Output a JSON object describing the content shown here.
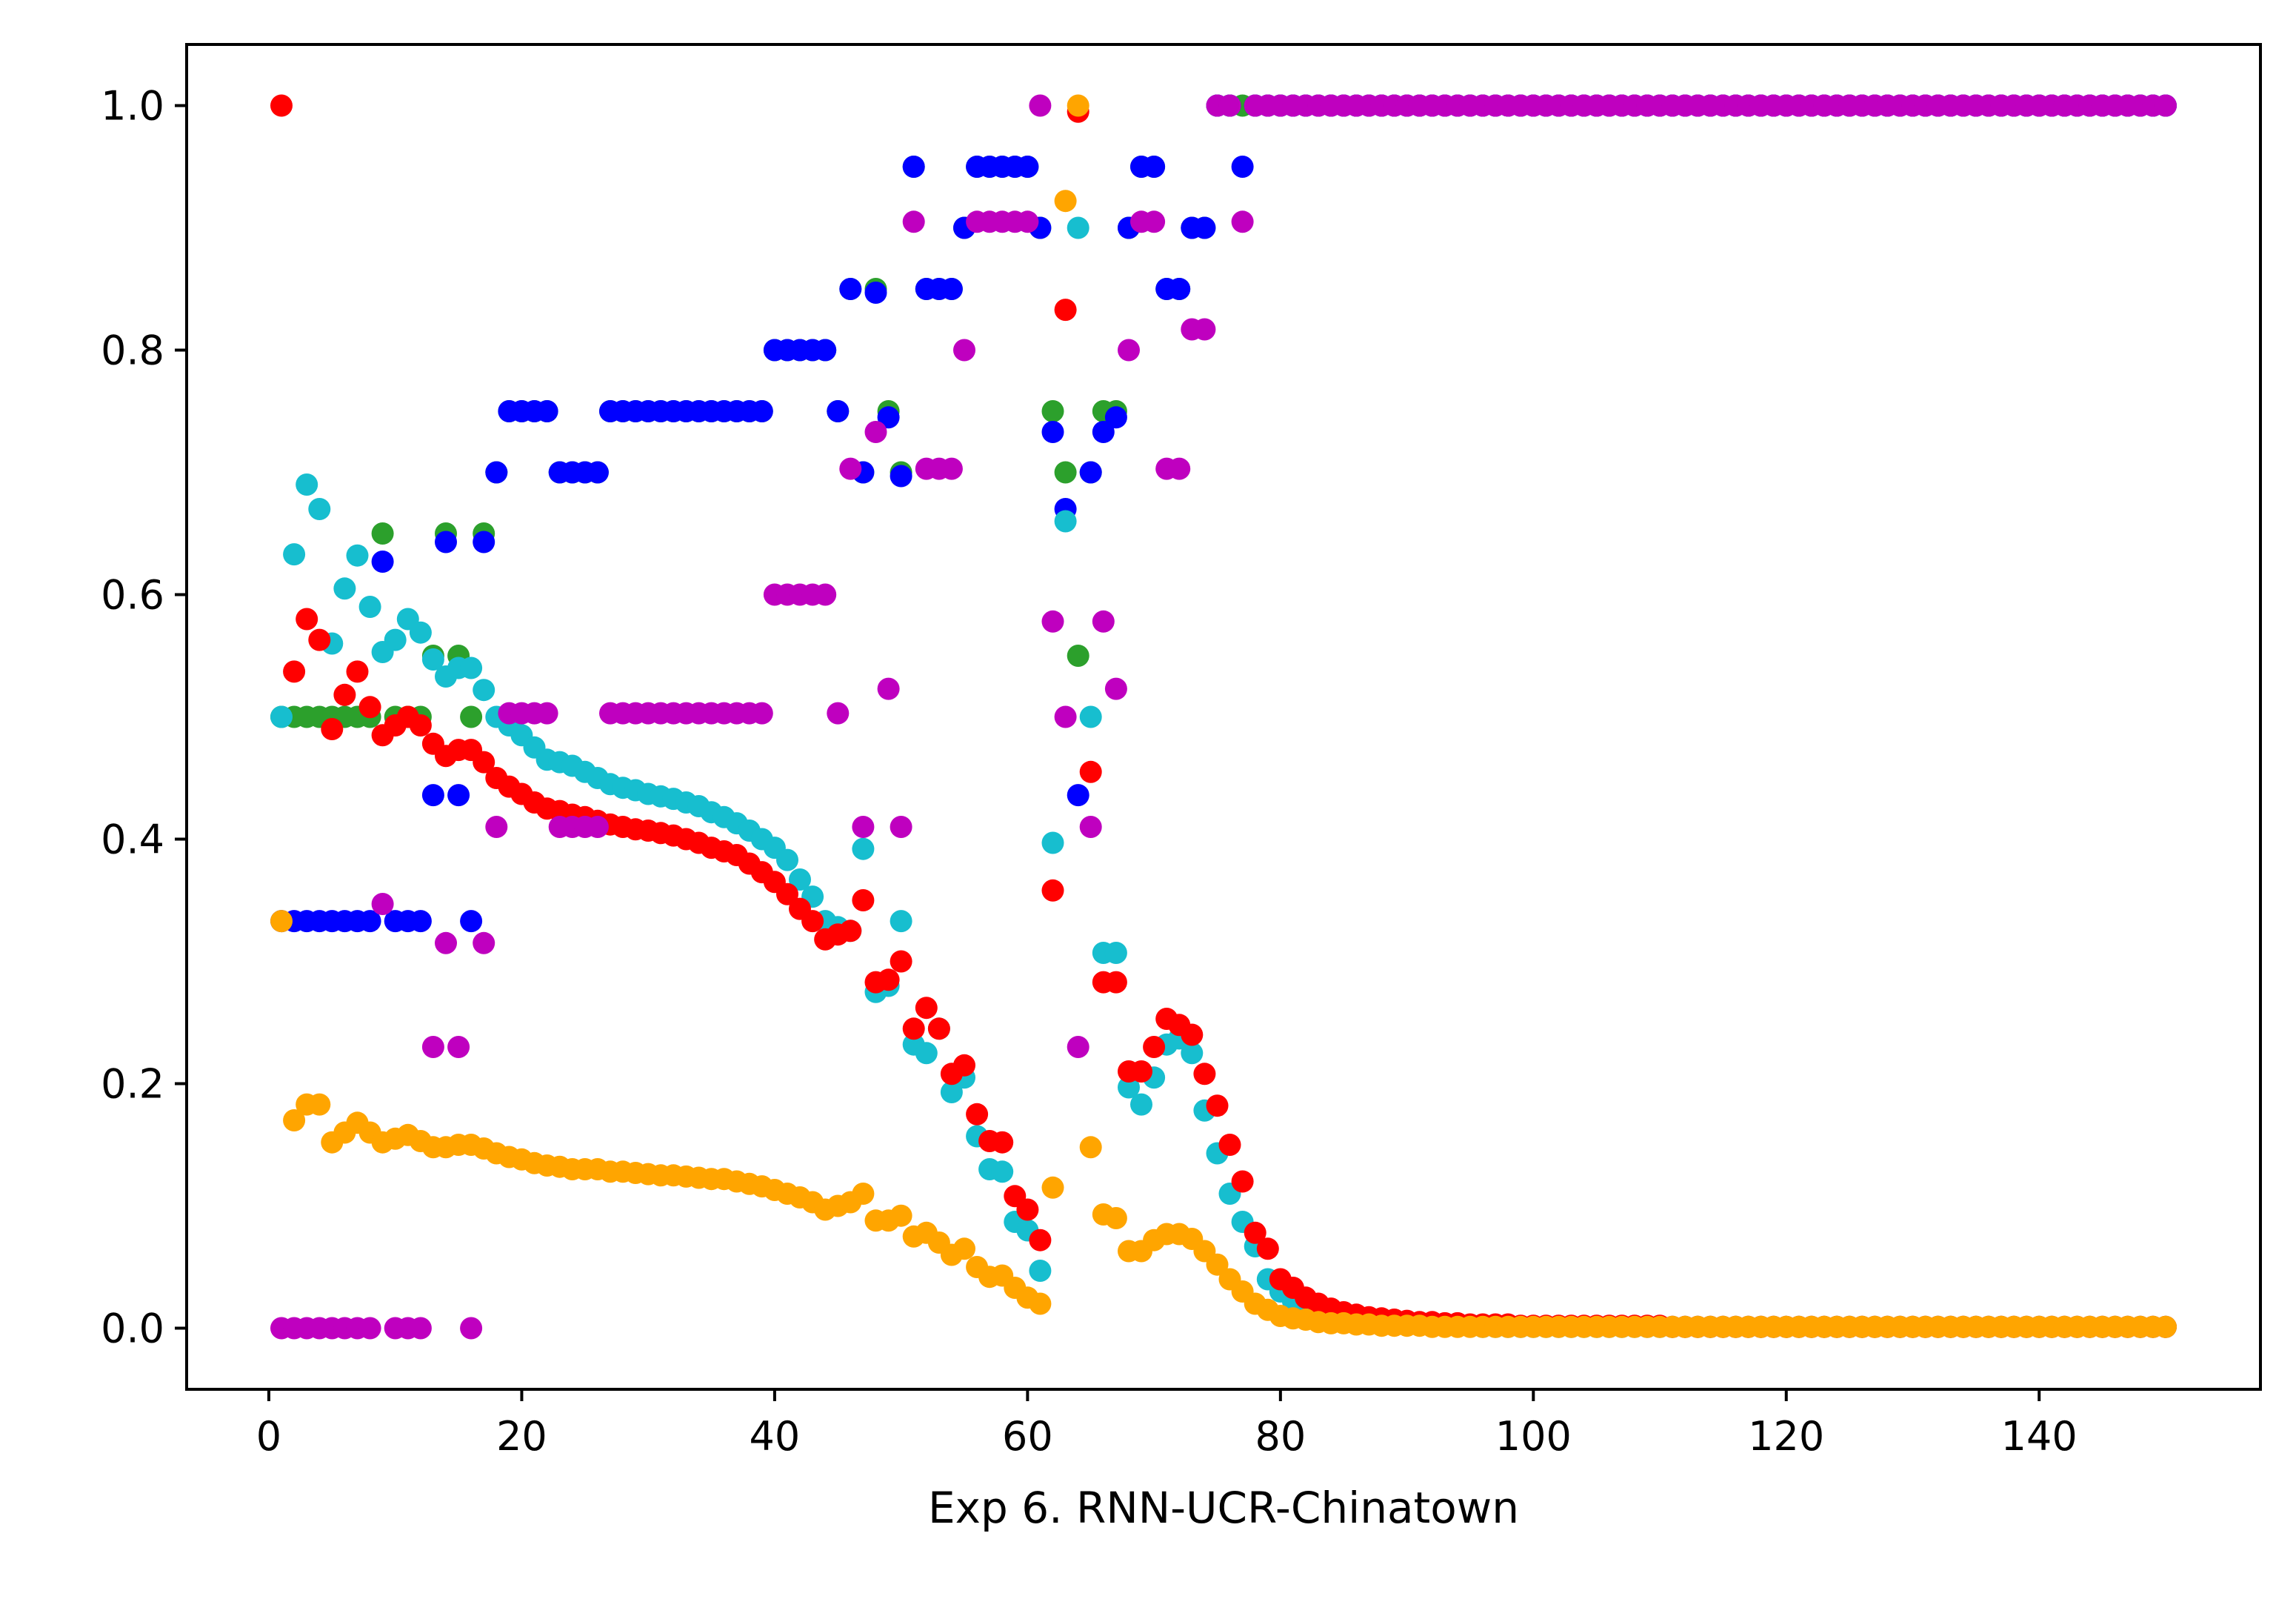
{
  "chart_data": {
    "type": "scatter",
    "title": "",
    "xlabel": "Exp 6. RNN-UCR-Chinatown",
    "ylabel": "",
    "xlim": [
      -6.5,
      157.5
    ],
    "ylim": [
      -0.05,
      1.05
    ],
    "x_ticks": [
      0,
      20,
      40,
      60,
      80,
      100,
      120,
      140
    ],
    "y_ticks": [
      0.0,
      0.2,
      0.4,
      0.6,
      0.8,
      1.0
    ],
    "x_tick_labels": [
      "0",
      "20",
      "40",
      "60",
      "80",
      "100",
      "120",
      "140"
    ],
    "y_tick_labels": [
      "0.0",
      "0.2",
      "0.4",
      "0.6",
      "0.8",
      "1.0"
    ],
    "grid": false,
    "legend": "none",
    "x": [
      1,
      2,
      3,
      4,
      5,
      6,
      7,
      8,
      9,
      10,
      11,
      12,
      13,
      14,
      15,
      16,
      17,
      18,
      19,
      20,
      21,
      22,
      23,
      24,
      25,
      26,
      27,
      28,
      29,
      30,
      31,
      32,
      33,
      34,
      35,
      36,
      37,
      38,
      39,
      40,
      41,
      42,
      43,
      44,
      45,
      46,
      47,
      48,
      49,
      50,
      51,
      52,
      53,
      54,
      55,
      56,
      57,
      58,
      59,
      60,
      61,
      62,
      63,
      64,
      65,
      66,
      67,
      68,
      69,
      70,
      71,
      72,
      73,
      74,
      75,
      76,
      77,
      78,
      79,
      80,
      81,
      82,
      83,
      84,
      85,
      86,
      87,
      88,
      89,
      90,
      91,
      92,
      93,
      94,
      95,
      96,
      97,
      98,
      99,
      100,
      101,
      102,
      103,
      104,
      105,
      106,
      107,
      108,
      109,
      110,
      111,
      112,
      113,
      114,
      115,
      116,
      117,
      118,
      119,
      120,
      121,
      122,
      123,
      124,
      125,
      126,
      127,
      128,
      129,
      130,
      131,
      132,
      133,
      134,
      135,
      136,
      137,
      138,
      139,
      140,
      141,
      142,
      143,
      144,
      145,
      146,
      147,
      148,
      149,
      150
    ],
    "series": [
      {
        "color": "#2ca02c",
        "values": [
          0.5,
          0.5,
          0.5,
          0.5,
          0.5,
          0.5,
          0.5,
          0.5,
          0.65,
          0.5,
          0.5,
          0.5,
          0.55,
          0.65,
          0.55,
          0.5,
          0.65,
          0.7,
          0.75,
          0.75,
          0.75,
          0.75,
          0.7,
          0.7,
          0.7,
          0.7,
          0.75,
          0.75,
          0.75,
          0.75,
          0.75,
          0.75,
          0.75,
          0.75,
          0.75,
          0.75,
          0.75,
          0.75,
          0.75,
          0.8,
          0.8,
          0.8,
          0.8,
          0.8,
          0.75,
          0.85,
          0.7,
          0.85,
          0.75,
          0.7,
          0.95,
          0.85,
          0.85,
          0.85,
          0.9,
          0.95,
          0.95,
          0.95,
          0.95,
          0.95,
          0.9,
          0.75,
          0.7,
          0.55,
          0.7,
          0.75,
          0.75,
          0.9,
          0.95,
          0.95,
          0.85,
          0.85,
          0.9,
          0.9,
          1.0,
          1.0,
          1.0,
          1.0,
          1.0,
          1.0,
          1.0,
          1.0,
          1.0,
          1.0,
          1.0,
          1.0,
          1.0,
          1.0,
          1.0,
          1.0,
          1.0,
          1.0,
          1.0,
          1.0,
          1.0,
          1.0,
          1.0,
          1.0,
          1.0,
          1.0,
          1.0,
          1.0,
          1.0,
          1.0,
          1.0,
          1.0,
          1.0,
          1.0,
          1.0,
          1.0,
          1.0,
          1.0,
          1.0,
          1.0,
          1.0,
          1.0,
          1.0,
          1.0,
          1.0,
          1.0,
          1.0,
          1.0,
          1.0,
          1.0,
          1.0,
          1.0,
          1.0,
          1.0,
          1.0,
          1.0,
          1.0,
          1.0,
          1.0,
          1.0,
          1.0,
          1.0,
          1.0,
          1.0,
          1.0,
          1.0,
          1.0,
          1.0,
          1.0,
          1.0,
          1.0,
          1.0,
          1.0,
          1.0,
          1.0,
          1.0
        ]
      },
      {
        "color": "#0000ff",
        "values": [
          0.333,
          0.333,
          0.333,
          0.333,
          0.333,
          0.333,
          0.333,
          0.333,
          0.627,
          0.333,
          0.333,
          0.333,
          0.436,
          0.643,
          0.436,
          0.333,
          0.643,
          0.7,
          0.75,
          0.75,
          0.75,
          0.75,
          0.7,
          0.7,
          0.7,
          0.7,
          0.75,
          0.75,
          0.75,
          0.75,
          0.75,
          0.75,
          0.75,
          0.75,
          0.75,
          0.75,
          0.75,
          0.75,
          0.75,
          0.8,
          0.8,
          0.8,
          0.8,
          0.8,
          0.75,
          0.85,
          0.7,
          0.847,
          0.745,
          0.697,
          0.95,
          0.85,
          0.85,
          0.85,
          0.9,
          0.95,
          0.95,
          0.95,
          0.95,
          0.95,
          0.9,
          0.733,
          0.67,
          0.436,
          0.7,
          0.733,
          0.745,
          0.9,
          0.95,
          0.95,
          0.85,
          0.85,
          0.9,
          0.9,
          1.0,
          1.0,
          0.95,
          1.0,
          1.0,
          1.0,
          1.0,
          1.0,
          1.0,
          1.0,
          1.0,
          1.0,
          1.0,
          1.0,
          1.0,
          1.0,
          1.0,
          1.0,
          1.0,
          1.0,
          1.0,
          1.0,
          1.0,
          1.0,
          1.0,
          1.0,
          1.0,
          1.0,
          1.0,
          1.0,
          1.0,
          1.0,
          1.0,
          1.0,
          1.0,
          1.0,
          1.0,
          1.0,
          1.0,
          1.0,
          1.0,
          1.0,
          1.0,
          1.0,
          1.0,
          1.0,
          1.0,
          1.0,
          1.0,
          1.0,
          1.0,
          1.0,
          1.0,
          1.0,
          1.0,
          1.0,
          1.0,
          1.0,
          1.0,
          1.0,
          1.0,
          1.0,
          1.0,
          1.0,
          1.0,
          1.0,
          1.0,
          1.0,
          1.0,
          1.0,
          1.0,
          1.0,
          1.0,
          1.0,
          1.0,
          1.0
        ]
      },
      {
        "color": "#17becf",
        "values": [
          0.5,
          0.633,
          0.69,
          0.67,
          0.56,
          0.605,
          0.632,
          0.59,
          0.553,
          0.563,
          0.58,
          0.569,
          0.547,
          0.533,
          0.54,
          0.54,
          0.522,
          0.5,
          0.493,
          0.485,
          0.475,
          0.465,
          0.463,
          0.46,
          0.455,
          0.45,
          0.445,
          0.442,
          0.44,
          0.437,
          0.435,
          0.433,
          0.43,
          0.427,
          0.422,
          0.418,
          0.413,
          0.407,
          0.4,
          0.393,
          0.383,
          0.367,
          0.353,
          0.333,
          0.328,
          0.325,
          0.392,
          0.275,
          0.28,
          0.333,
          0.232,
          0.225,
          0.245,
          0.193,
          0.205,
          0.157,
          0.13,
          0.128,
          0.087,
          0.08,
          0.047,
          0.397,
          0.66,
          0.9,
          0.5,
          0.307,
          0.307,
          0.197,
          0.183,
          0.205,
          0.232,
          0.237,
          0.225,
          0.178,
          0.143,
          0.11,
          0.087,
          0.067,
          0.04,
          0.03,
          0.022,
          0.016,
          0.012,
          0.009,
          0.007,
          0.006,
          0.005,
          0.004,
          0.004,
          0.003,
          0.003,
          0.002,
          0.002,
          0.002,
          0.002,
          0.001,
          0.001,
          0.001,
          0.001,
          0.001,
          0.001,
          0.001,
          0.001,
          0.001,
          0.001,
          0.001,
          0.001,
          0.001,
          0.001,
          0.001,
          0.001,
          0.001,
          0.001,
          0.001,
          0.001,
          0.001,
          0.001,
          0.001,
          0.001,
          0.001,
          0.001,
          0.001,
          0.001,
          0.001,
          0.001,
          0.001,
          0.001,
          0.001,
          0.001,
          0.001,
          0.001,
          0.001,
          0.001,
          0.001,
          0.001,
          0.001,
          0.001,
          0.001,
          0.001,
          0.001,
          0.001,
          0.001,
          0.001,
          0.001,
          0.001,
          0.001,
          0.001,
          0.001,
          0.001,
          0.001
        ]
      },
      {
        "color": "#ff0000",
        "values": [
          1.0,
          0.537,
          0.58,
          0.563,
          0.49,
          0.518,
          0.537,
          0.508,
          0.485,
          0.493,
          0.5,
          0.493,
          0.478,
          0.468,
          0.473,
          0.473,
          0.463,
          0.45,
          0.443,
          0.437,
          0.43,
          0.425,
          0.423,
          0.42,
          0.418,
          0.415,
          0.412,
          0.41,
          0.408,
          0.407,
          0.405,
          0.403,
          0.4,
          0.397,
          0.393,
          0.39,
          0.387,
          0.38,
          0.373,
          0.365,
          0.355,
          0.343,
          0.333,
          0.318,
          0.322,
          0.325,
          0.35,
          0.283,
          0.285,
          0.3,
          0.245,
          0.262,
          0.245,
          0.208,
          0.215,
          0.175,
          0.153,
          0.152,
          0.108,
          0.097,
          0.072,
          0.358,
          0.833,
          0.995,
          0.455,
          0.283,
          0.283,
          0.21,
          0.21,
          0.23,
          0.253,
          0.248,
          0.24,
          0.208,
          0.182,
          0.15,
          0.12,
          0.078,
          0.065,
          0.04,
          0.033,
          0.025,
          0.02,
          0.016,
          0.013,
          0.011,
          0.009,
          0.008,
          0.007,
          0.006,
          0.005,
          0.005,
          0.004,
          0.004,
          0.003,
          0.003,
          0.003,
          0.003,
          0.002,
          0.002,
          0.002,
          0.002,
          0.002,
          0.002,
          0.002,
          0.002,
          0.002,
          0.002,
          0.002,
          0.002,
          0.001,
          0.001,
          0.001,
          0.001,
          0.001,
          0.001,
          0.001,
          0.001,
          0.001,
          0.001,
          0.001,
          0.001,
          0.001,
          0.001,
          0.001,
          0.001,
          0.001,
          0.001,
          0.001,
          0.001,
          0.001,
          0.001,
          0.001,
          0.001,
          0.001,
          0.001,
          0.001,
          0.001,
          0.001,
          0.001,
          0.001,
          0.001,
          0.001,
          0.001,
          0.001,
          0.001,
          0.001,
          0.001,
          0.001,
          0.001
        ]
      },
      {
        "color": "#bf00bf",
        "values": [
          0.0,
          0.0,
          0.0,
          0.0,
          0.0,
          0.0,
          0.0,
          0.0,
          0.347,
          0.0,
          0.0,
          0.0,
          0.23,
          0.315,
          0.23,
          0.0,
          0.315,
          0.41,
          0.503,
          0.503,
          0.503,
          0.503,
          0.41,
          0.41,
          0.41,
          0.41,
          0.503,
          0.503,
          0.503,
          0.503,
          0.503,
          0.503,
          0.503,
          0.503,
          0.503,
          0.503,
          0.503,
          0.503,
          0.503,
          0.6,
          0.6,
          0.6,
          0.6,
          0.6,
          0.503,
          0.703,
          0.41,
          0.733,
          0.523,
          0.41,
          0.905,
          0.703,
          0.703,
          0.703,
          0.8,
          0.905,
          0.905,
          0.905,
          0.905,
          0.905,
          1.0,
          0.578,
          0.5,
          0.23,
          0.41,
          0.578,
          0.523,
          0.8,
          0.905,
          0.905,
          0.703,
          0.703,
          0.817,
          0.817,
          1.0,
          1.0,
          0.905,
          1.0,
          1.0,
          1.0,
          1.0,
          1.0,
          1.0,
          1.0,
          1.0,
          1.0,
          1.0,
          1.0,
          1.0,
          1.0,
          1.0,
          1.0,
          1.0,
          1.0,
          1.0,
          1.0,
          1.0,
          1.0,
          1.0,
          1.0,
          1.0,
          1.0,
          1.0,
          1.0,
          1.0,
          1.0,
          1.0,
          1.0,
          1.0,
          1.0,
          1.0,
          1.0,
          1.0,
          1.0,
          1.0,
          1.0,
          1.0,
          1.0,
          1.0,
          1.0,
          1.0,
          1.0,
          1.0,
          1.0,
          1.0,
          1.0,
          1.0,
          1.0,
          1.0,
          1.0,
          1.0,
          1.0,
          1.0,
          1.0,
          1.0,
          1.0,
          1.0,
          1.0,
          1.0,
          1.0,
          1.0,
          1.0,
          1.0,
          1.0,
          1.0,
          1.0,
          1.0,
          1.0,
          1.0,
          1.0
        ]
      },
      {
        "color": "#ffa500",
        "values": [
          0.333,
          0.17,
          0.183,
          0.183,
          0.152,
          0.16,
          0.168,
          0.16,
          0.152,
          0.155,
          0.158,
          0.153,
          0.148,
          0.148,
          0.15,
          0.15,
          0.147,
          0.143,
          0.14,
          0.138,
          0.135,
          0.133,
          0.132,
          0.13,
          0.13,
          0.13,
          0.128,
          0.128,
          0.127,
          0.126,
          0.125,
          0.125,
          0.124,
          0.123,
          0.122,
          0.122,
          0.12,
          0.118,
          0.116,
          0.113,
          0.11,
          0.107,
          0.103,
          0.097,
          0.1,
          0.103,
          0.11,
          0.088,
          0.088,
          0.092,
          0.075,
          0.078,
          0.07,
          0.06,
          0.065,
          0.05,
          0.042,
          0.043,
          0.033,
          0.025,
          0.02,
          0.115,
          0.922,
          1.0,
          0.148,
          0.093,
          0.09,
          0.063,
          0.063,
          0.072,
          0.077,
          0.077,
          0.073,
          0.063,
          0.052,
          0.04,
          0.03,
          0.02,
          0.015,
          0.01,
          0.008,
          0.007,
          0.005,
          0.004,
          0.004,
          0.003,
          0.003,
          0.002,
          0.002,
          0.002,
          0.002,
          0.001,
          0.001,
          0.001,
          0.001,
          0.001,
          0.001,
          0.001,
          0.001,
          0.001,
          0.001,
          0.001,
          0.001,
          0.001,
          0.001,
          0.001,
          0.001,
          0.001,
          0.001,
          0.001,
          0.001,
          0.001,
          0.001,
          0.001,
          0.001,
          0.001,
          0.001,
          0.001,
          0.001,
          0.001,
          0.001,
          0.001,
          0.001,
          0.001,
          0.001,
          0.001,
          0.001,
          0.001,
          0.001,
          0.001,
          0.001,
          0.001,
          0.001,
          0.001,
          0.001,
          0.001,
          0.001,
          0.001,
          0.001,
          0.001,
          0.001,
          0.001,
          0.001,
          0.001,
          0.001,
          0.001,
          0.001,
          0.001,
          0.001,
          0.001
        ]
      }
    ]
  }
}
